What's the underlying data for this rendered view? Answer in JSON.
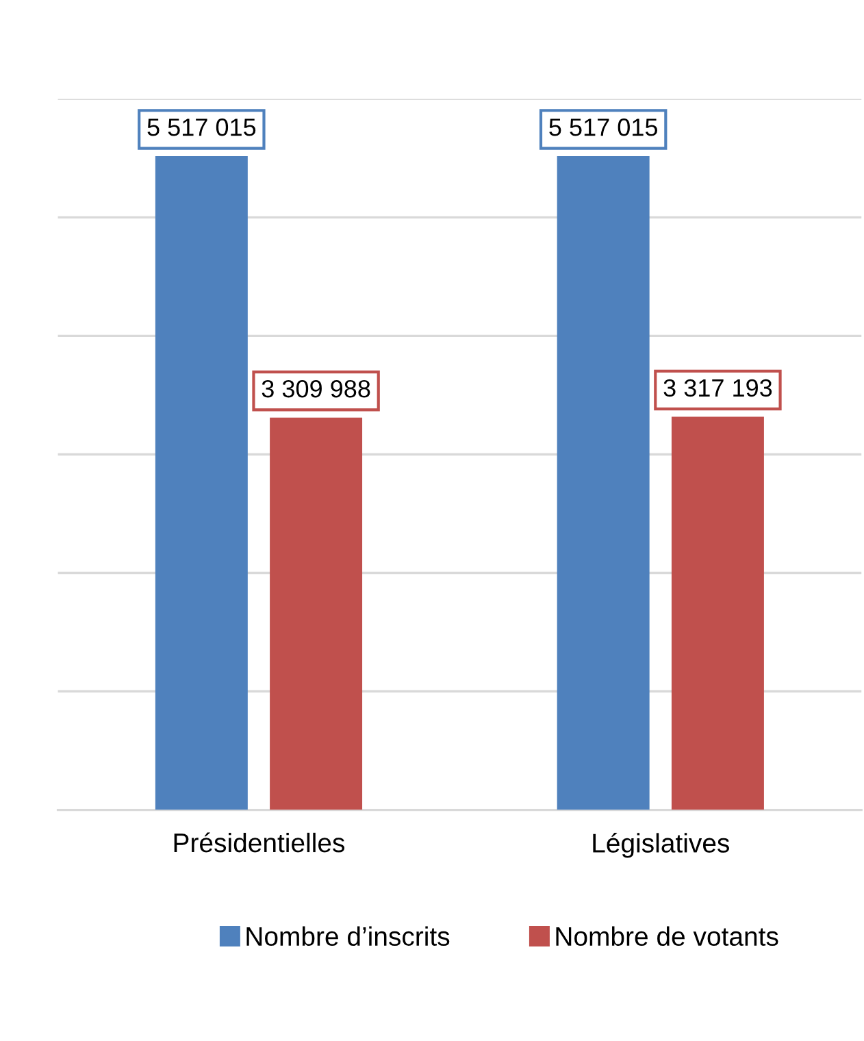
{
  "chart_data": {
    "type": "bar",
    "categories": [
      "Présidentielles",
      "Législatives"
    ],
    "series": [
      {
        "name": "Nombre d’inscrits",
        "color": "#4f81bd",
        "values": [
          5517015,
          5517015
        ],
        "value_labels": [
          "5 517 015",
          "5 517 015"
        ]
      },
      {
        "name": "Nombre de votants",
        "color": "#c0504d",
        "values": [
          3309988,
          3317193
        ],
        "value_labels": [
          "3 309 988",
          "3 317 193"
        ]
      }
    ],
    "ylim": [
      0,
      6000000
    ],
    "yticks": [
      {
        "value": 0,
        "label": null
      },
      {
        "value": 1000000,
        "label": null
      },
      {
        "value": 2000000,
        "label": null
      },
      {
        "value": 3000000,
        "label": null
      },
      {
        "value": 4000000,
        "label": null
      },
      {
        "value": 5000000,
        "label": null
      },
      {
        "value": 6000000,
        "label": null
      }
    ],
    "tick_labels": "x",
    "grid": "y",
    "legend": "bottom"
  }
}
